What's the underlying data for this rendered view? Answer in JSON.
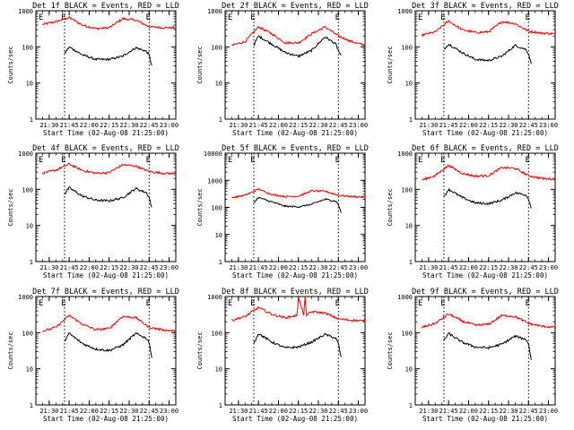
{
  "common": {
    "ylabel": "Counts/sec",
    "xlabel": "Start Time (02-Aug-08 21:25:00)",
    "marker_label": "E",
    "x_ticks": [
      "21:30",
      "21:45",
      "22:00",
      "22:15",
      "22:30",
      "22:45",
      "23:00"
    ],
    "y_ticks": [
      "1",
      "10",
      "100",
      "1000"
    ],
    "colors": {
      "events": "#000000",
      "lld": "#ff0000",
      "axis": "#000000",
      "background": "#ffffff"
    }
  },
  "chart_data": [
    {
      "type": "line",
      "title": "Det 1f BLACK = Events, RED = LLD",
      "x_range_min": [
        -5,
        100
      ],
      "ylim": [
        1,
        1000
      ],
      "yscale": "log",
      "markers_min": [
        16.5,
        80
      ],
      "series": [
        {
          "name": "LLD",
          "x": [
            0,
            10,
            20,
            30,
            40,
            50,
            60,
            70,
            80,
            90,
            100
          ],
          "y": [
            420,
            500,
            650,
            400,
            320,
            340,
            600,
            550,
            360,
            340,
            340
          ]
        },
        {
          "name": "Events",
          "x": [
            16.5,
            20,
            30,
            40,
            50,
            60,
            70,
            78,
            80,
            82
          ],
          "y": [
            65,
            100,
            60,
            45,
            45,
            55,
            95,
            75,
            60,
            30
          ]
        }
      ]
    },
    {
      "type": "line",
      "title": "Det 2f BLACK = Events, RED = LLD",
      "x_range_min": [
        -5,
        100
      ],
      "ylim": [
        1,
        1000
      ],
      "yscale": "log",
      "markers_min": [
        16.5,
        80
      ],
      "series": [
        {
          "name": "LLD",
          "x": [
            0,
            10,
            20,
            30,
            40,
            50,
            60,
            70,
            80,
            90,
            100
          ],
          "y": [
            110,
            140,
            360,
            230,
            130,
            130,
            230,
            360,
            200,
            140,
            110
          ]
        },
        {
          "name": "Events",
          "x": [
            16.5,
            20,
            30,
            40,
            50,
            60,
            70,
            78,
            80,
            82
          ],
          "y": [
            110,
            200,
            120,
            70,
            55,
            80,
            190,
            120,
            80,
            55
          ]
        }
      ]
    },
    {
      "type": "line",
      "title": "Det 3f BLACK = Events, RED = LLD",
      "x_range_min": [
        -5,
        100
      ],
      "ylim": [
        1,
        1000
      ],
      "yscale": "log",
      "markers_min": [
        16.5,
        80
      ],
      "series": [
        {
          "name": "LLD",
          "x": [
            0,
            10,
            20,
            30,
            40,
            50,
            60,
            70,
            80,
            90,
            100
          ],
          "y": [
            210,
            260,
            520,
            300,
            250,
            260,
            500,
            440,
            270,
            240,
            230
          ]
        },
        {
          "name": "Events",
          "x": [
            16.5,
            20,
            30,
            40,
            50,
            60,
            70,
            78,
            80,
            82
          ],
          "y": [
            85,
            120,
            70,
            45,
            42,
            55,
            110,
            85,
            65,
            35
          ]
        }
      ]
    },
    {
      "type": "line",
      "title": "Det 4f BLACK = Events, RED = LLD",
      "x_range_min": [
        -5,
        100
      ],
      "ylim": [
        1,
        1000
      ],
      "yscale": "log",
      "markers_min": [
        16.5,
        80
      ],
      "series": [
        {
          "name": "LLD",
          "x": [
            0,
            10,
            20,
            30,
            40,
            50,
            60,
            70,
            80,
            90,
            100
          ],
          "y": [
            280,
            340,
            500,
            330,
            280,
            290,
            480,
            440,
            310,
            280,
            270
          ]
        },
        {
          "name": "Events",
          "x": [
            16.5,
            20,
            30,
            40,
            50,
            60,
            70,
            78,
            80,
            82
          ],
          "y": [
            75,
            110,
            65,
            50,
            48,
            58,
            105,
            80,
            60,
            30
          ]
        }
      ]
    },
    {
      "type": "line",
      "title": "Det 5f BLACK = Events, RED = LLD",
      "x_range_min": [
        -5,
        100
      ],
      "ylim": [
        1,
        10000
      ],
      "yscale": "log",
      "markers_min": [
        16.5,
        80
      ],
      "series": [
        {
          "name": "LLD",
          "x": [
            0,
            10,
            20,
            30,
            40,
            50,
            60,
            70,
            80,
            90,
            100
          ],
          "y": [
            230,
            280,
            470,
            300,
            250,
            260,
            410,
            390,
            280,
            250,
            240
          ]
        },
        {
          "name": "Events",
          "x": [
            16.5,
            20,
            30,
            40,
            50,
            60,
            70,
            78,
            80,
            82
          ],
          "y": [
            150,
            230,
            160,
            110,
            105,
            130,
            200,
            170,
            130,
            65
          ]
        }
      ]
    },
    {
      "type": "line",
      "title": "Det 6f BLACK = Events, RED = LLD",
      "x_range_min": [
        -5,
        100
      ],
      "ylim": [
        1,
        1000
      ],
      "yscale": "log",
      "markers_min": [
        16.5,
        80
      ],
      "series": [
        {
          "name": "LLD",
          "x": [
            0,
            10,
            20,
            30,
            40,
            50,
            60,
            70,
            80,
            90,
            100
          ],
          "y": [
            180,
            240,
            460,
            280,
            230,
            240,
            400,
            380,
            240,
            200,
            190
          ]
        },
        {
          "name": "Events",
          "x": [
            16.5,
            20,
            30,
            40,
            50,
            60,
            70,
            78,
            80,
            82
          ],
          "y": [
            60,
            100,
            60,
            42,
            40,
            50,
            80,
            70,
            55,
            30
          ]
        }
      ]
    },
    {
      "type": "line",
      "title": "Det 7f BLACK = Events, RED = LLD",
      "x_range_min": [
        -5,
        100
      ],
      "ylim": [
        1,
        1000
      ],
      "yscale": "log",
      "markers_min": [
        16.5,
        80
      ],
      "series": [
        {
          "name": "LLD",
          "x": [
            0,
            10,
            20,
            30,
            40,
            50,
            60,
            70,
            80,
            90,
            100
          ],
          "y": [
            110,
            140,
            300,
            170,
            120,
            130,
            280,
            260,
            140,
            120,
            110
          ]
        },
        {
          "name": "Events",
          "x": [
            16.5,
            20,
            30,
            40,
            50,
            60,
            70,
            78,
            80,
            82
          ],
          "y": [
            60,
            95,
            50,
            35,
            32,
            45,
            95,
            70,
            55,
            20
          ]
        }
      ]
    },
    {
      "type": "line",
      "title": "Det 8f BLACK = Events, RED = LLD",
      "x_range_min": [
        -5,
        100
      ],
      "ylim": [
        1,
        1000
      ],
      "yscale": "log",
      "markers_min": [
        16.5,
        80
      ],
      "series": [
        {
          "name": "LLD",
          "x": [
            0,
            10,
            20,
            30,
            40,
            49,
            50,
            54,
            55,
            56,
            60,
            70,
            80,
            90,
            100
          ],
          "y": [
            220,
            280,
            500,
            320,
            260,
            300,
            1000,
            300,
            1000,
            300,
            380,
            350,
            240,
            220,
            210
          ]
        },
        {
          "name": "Events",
          "x": [
            16.5,
            20,
            30,
            40,
            50,
            60,
            70,
            78,
            80,
            82
          ],
          "y": [
            50,
            95,
            55,
            38,
            40,
            55,
            90,
            70,
            50,
            20
          ]
        }
      ]
    },
    {
      "type": "line",
      "title": "Det 9f BLACK = Events, RED = LLD",
      "x_range_min": [
        -5,
        100
      ],
      "ylim": [
        1,
        1000
      ],
      "yscale": "log",
      "markers_min": [
        16.5,
        80
      ],
      "series": [
        {
          "name": "LLD",
          "x": [
            0,
            10,
            20,
            30,
            40,
            50,
            60,
            70,
            80,
            90,
            100
          ],
          "y": [
            140,
            180,
            330,
            210,
            160,
            170,
            300,
            280,
            180,
            150,
            140
          ]
        },
        {
          "name": "Events",
          "x": [
            16.5,
            20,
            30,
            40,
            50,
            60,
            70,
            78,
            80,
            82
          ],
          "y": [
            60,
            95,
            55,
            40,
            38,
            48,
            80,
            65,
            50,
            18
          ]
        }
      ]
    }
  ]
}
